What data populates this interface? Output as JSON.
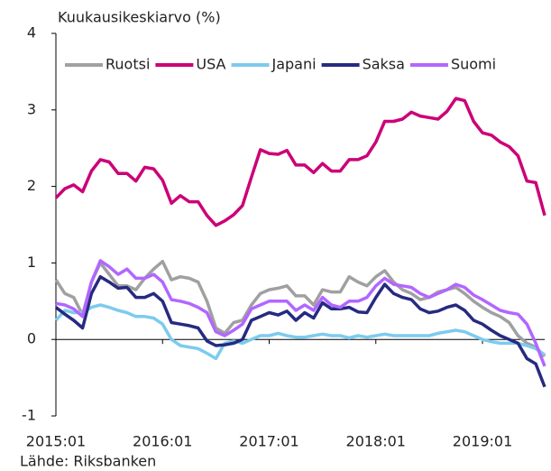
{
  "chart_data": {
    "type": "line",
    "y_label": "Kuukausikeskiarvo (%)",
    "source": "Lähde: Riksbanken",
    "legend": "top",
    "categories": [
      "2015:01",
      null,
      null,
      null,
      null,
      null,
      null,
      null,
      null,
      null,
      null,
      null,
      "2016:01",
      null,
      null,
      null,
      null,
      null,
      null,
      null,
      null,
      null,
      null,
      null,
      "2017:01",
      null,
      null,
      null,
      null,
      null,
      null,
      null,
      null,
      null,
      null,
      null,
      "2018:01",
      null,
      null,
      null,
      null,
      null,
      null,
      null,
      null,
      null,
      null,
      null,
      "2019:01",
      null,
      null,
      null,
      null,
      null,
      null,
      null
    ],
    "ylim": [
      -1,
      4
    ],
    "yticks": [
      -1,
      0,
      1,
      2,
      3,
      4
    ],
    "series": [
      {
        "name": "Ruotsi",
        "color": "#a0a0a0",
        "values": [
          0.78,
          0.6,
          0.55,
          0.32,
          0.75,
          1.0,
          0.85,
          0.7,
          0.7,
          0.65,
          0.8,
          0.92,
          1.02,
          0.78,
          0.82,
          0.8,
          0.75,
          0.5,
          0.15,
          0.08,
          0.22,
          0.25,
          0.45,
          0.6,
          0.65,
          0.67,
          0.7,
          0.57,
          0.57,
          0.45,
          0.65,
          0.62,
          0.62,
          0.82,
          0.75,
          0.7,
          0.82,
          0.9,
          0.75,
          0.65,
          0.6,
          0.52,
          0.55,
          0.62,
          0.65,
          0.68,
          0.6,
          0.5,
          0.42,
          0.35,
          0.3,
          0.22,
          0.05,
          -0.05,
          -0.1,
          -0.22
        ]
      },
      {
        "name": "USA",
        "color": "#cc0077",
        "values": [
          1.85,
          1.97,
          2.02,
          1.93,
          2.2,
          2.35,
          2.32,
          2.17,
          2.17,
          2.07,
          2.25,
          2.23,
          2.08,
          1.78,
          1.88,
          1.8,
          1.8,
          1.62,
          1.49,
          1.55,
          1.63,
          1.75,
          2.12,
          2.48,
          2.43,
          2.42,
          2.47,
          2.28,
          2.28,
          2.18,
          2.3,
          2.2,
          2.2,
          2.35,
          2.35,
          2.4,
          2.58,
          2.85,
          2.85,
          2.88,
          2.97,
          2.92,
          2.9,
          2.88,
          2.98,
          3.15,
          3.12,
          2.85,
          2.7,
          2.67,
          2.58,
          2.52,
          2.4,
          2.07,
          2.05,
          1.62
        ]
      },
      {
        "name": "Japani",
        "color": "#7ccbee",
        "values": [
          0.25,
          0.38,
          0.35,
          0.35,
          0.42,
          0.45,
          0.42,
          0.38,
          0.35,
          0.3,
          0.3,
          0.28,
          0.2,
          0.0,
          -0.08,
          -0.1,
          -0.12,
          -0.18,
          -0.25,
          -0.05,
          -0.02,
          -0.05,
          0.0,
          0.05,
          0.05,
          0.08,
          0.05,
          0.03,
          0.03,
          0.05,
          0.07,
          0.05,
          0.05,
          0.02,
          0.05,
          0.03,
          0.05,
          0.07,
          0.05,
          0.05,
          0.05,
          0.05,
          0.05,
          0.08,
          0.1,
          0.12,
          0.1,
          0.05,
          0.0,
          -0.03,
          -0.05,
          -0.05,
          -0.05,
          -0.08,
          -0.12,
          -0.2
        ]
      },
      {
        "name": "Saksa",
        "color": "#262a80",
        "values": [
          0.42,
          0.33,
          0.25,
          0.15,
          0.6,
          0.82,
          0.75,
          0.67,
          0.68,
          0.55,
          0.55,
          0.6,
          0.5,
          0.22,
          0.2,
          0.18,
          0.15,
          -0.02,
          -0.08,
          -0.07,
          -0.05,
          0.0,
          0.25,
          0.3,
          0.35,
          0.32,
          0.37,
          0.25,
          0.35,
          0.28,
          0.48,
          0.4,
          0.4,
          0.42,
          0.36,
          0.35,
          0.55,
          0.72,
          0.6,
          0.55,
          0.52,
          0.4,
          0.35,
          0.37,
          0.42,
          0.45,
          0.38,
          0.25,
          0.2,
          0.12,
          0.05,
          0.0,
          -0.05,
          -0.25,
          -0.32,
          -0.62
        ]
      },
      {
        "name": "Suomi",
        "color": "#b266ff",
        "values": [
          0.47,
          0.45,
          0.4,
          0.3,
          0.75,
          1.03,
          0.95,
          0.85,
          0.92,
          0.8,
          0.8,
          0.85,
          0.75,
          0.52,
          0.5,
          0.47,
          0.42,
          0.35,
          0.1,
          0.05,
          0.12,
          0.2,
          0.4,
          0.45,
          0.5,
          0.5,
          0.5,
          0.38,
          0.45,
          0.38,
          0.55,
          0.45,
          0.42,
          0.5,
          0.5,
          0.55,
          0.7,
          0.8,
          0.72,
          0.7,
          0.68,
          0.6,
          0.55,
          0.6,
          0.65,
          0.72,
          0.68,
          0.58,
          0.52,
          0.45,
          0.38,
          0.35,
          0.33,
          0.2,
          -0.05,
          -0.35
        ]
      }
    ]
  }
}
